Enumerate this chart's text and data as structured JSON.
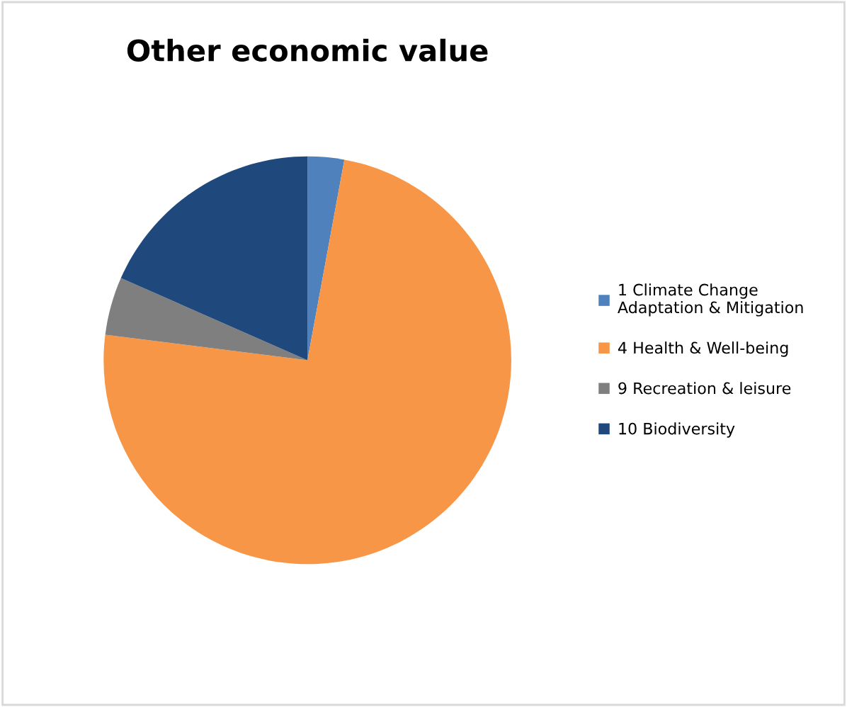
{
  "chart_data": {
    "type": "pie",
    "title": "Other economic value",
    "categories": [
      "1 Climate Change\nAdaptation & Mitigation",
      "4 Health & Well-being",
      "9 Recreation & leisure",
      "10 Biodiversity"
    ],
    "values": [
      2.9,
      74.1,
      4.6,
      18.4
    ],
    "colors": [
      "#4f81bd",
      "#f79646",
      "#7f7f7f",
      "#1f497d"
    ],
    "legend": "right"
  }
}
